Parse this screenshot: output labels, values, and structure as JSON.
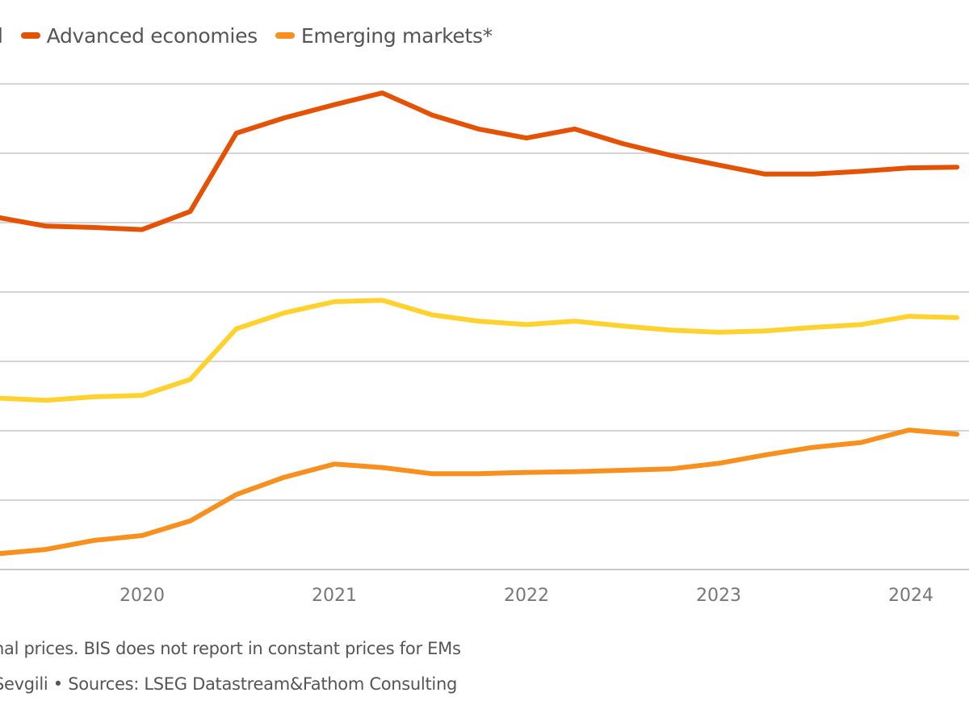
{
  "legend": {
    "items": [
      {
        "label": "d",
        "color": null
      },
      {
        "label": "Advanced economies",
        "color": "#E35205"
      },
      {
        "label": "Emerging markets*",
        "color": "#F7901E"
      }
    ]
  },
  "notes": {
    "line1": "nal prices. BIS does not report in constant prices for EMs",
    "line2": "Sevgili • Sources: LSEG Datastream&Fathom Consulting"
  },
  "chart_data": {
    "type": "line",
    "title": "",
    "xlabel": "",
    "ylabel": "",
    "x_unit": "year (quarterly)",
    "y_unit": "gridline units above axis (y tick labels cropped out of view)",
    "xlim": [
      2019.26,
      2024.29
    ],
    "ylim": [
      0,
      7
    ],
    "grid": true,
    "legend_position": "top-left",
    "x_tick_labels": [
      "2020",
      "2021",
      "2022",
      "2023",
      "2024"
    ],
    "x_tick_values": [
      2020,
      2021,
      2022,
      2023,
      2024
    ],
    "x": [
      2019.26,
      2019.5,
      2019.75,
      2020.0,
      2020.25,
      2020.49,
      2020.74,
      2021.0,
      2021.25,
      2021.51,
      2021.75,
      2022.0,
      2022.25,
      2022.5,
      2022.75,
      2023.0,
      2023.24,
      2023.49,
      2023.74,
      2023.99,
      2024.24
    ],
    "series": [
      {
        "name": "Advanced economies",
        "color": "#E35205",
        "values": [
          5.07,
          4.95,
          4.93,
          4.9,
          5.16,
          6.29,
          6.51,
          6.7,
          6.87,
          6.55,
          6.35,
          6.22,
          6.35,
          6.14,
          5.97,
          5.83,
          5.7,
          5.7,
          5.74,
          5.79,
          5.8
        ]
      },
      {
        "name": "Yellow series (legend label cropped)",
        "color": "#FFD230",
        "values": [
          2.47,
          2.44,
          2.49,
          2.51,
          2.74,
          3.47,
          3.7,
          3.86,
          3.88,
          3.67,
          3.58,
          3.53,
          3.58,
          3.51,
          3.45,
          3.42,
          3.44,
          3.49,
          3.53,
          3.65,
          3.63
        ]
      },
      {
        "name": "Emerging markets*",
        "color": "#F7901E",
        "values": [
          0.23,
          0.29,
          0.42,
          0.49,
          0.7,
          1.08,
          1.33,
          1.52,
          1.47,
          1.38,
          1.38,
          1.4,
          1.41,
          1.43,
          1.45,
          1.53,
          1.65,
          1.76,
          1.83,
          2.01,
          1.95
        ]
      }
    ]
  }
}
